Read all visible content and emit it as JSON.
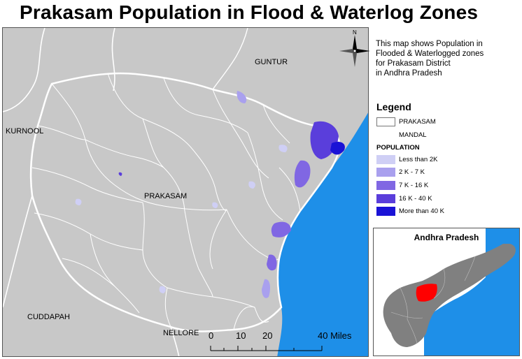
{
  "title": "Prakasam Population in Flood & Waterlog Zones",
  "description_lines": [
    "This map shows Population in",
    "Flooded & Waterlogged zones",
    "for Prakasam District",
    "in Andhra Pradesh"
  ],
  "places": {
    "guntur": "GUNTUR",
    "kurnool": "KURNOOL",
    "prakasam": "PRAKASAM",
    "cuddapah": "CUDDAPAH",
    "nellore": "NELLORE"
  },
  "north_label": "N",
  "legend": {
    "title": "Legend",
    "boundary_items": [
      {
        "label": "PRAKASAM"
      },
      {
        "label": "MANDAL"
      }
    ],
    "population_heading": "POPULATION",
    "classes": [
      {
        "label": "Less than 2K",
        "color": "#cfcff5"
      },
      {
        "label": "2 K - 7 K",
        "color": "#a9a0ee"
      },
      {
        "label": "7 K - 16 K",
        "color": "#8067e3"
      },
      {
        "label": "16 K - 40 K",
        "color": "#5a3edb"
      },
      {
        "label": "More than 40 K",
        "color": "#1a12d6"
      }
    ]
  },
  "inset": {
    "title": "Andhra Pradesh",
    "state_color": "#808080",
    "highlight_color": "#ff0000"
  },
  "scale_bar": {
    "labels": [
      "0",
      "10",
      "20",
      "40 Miles"
    ]
  },
  "colors": {
    "land": "#c8c8c8",
    "sea": "#1e8fe8",
    "boundary": "#ffffff"
  }
}
